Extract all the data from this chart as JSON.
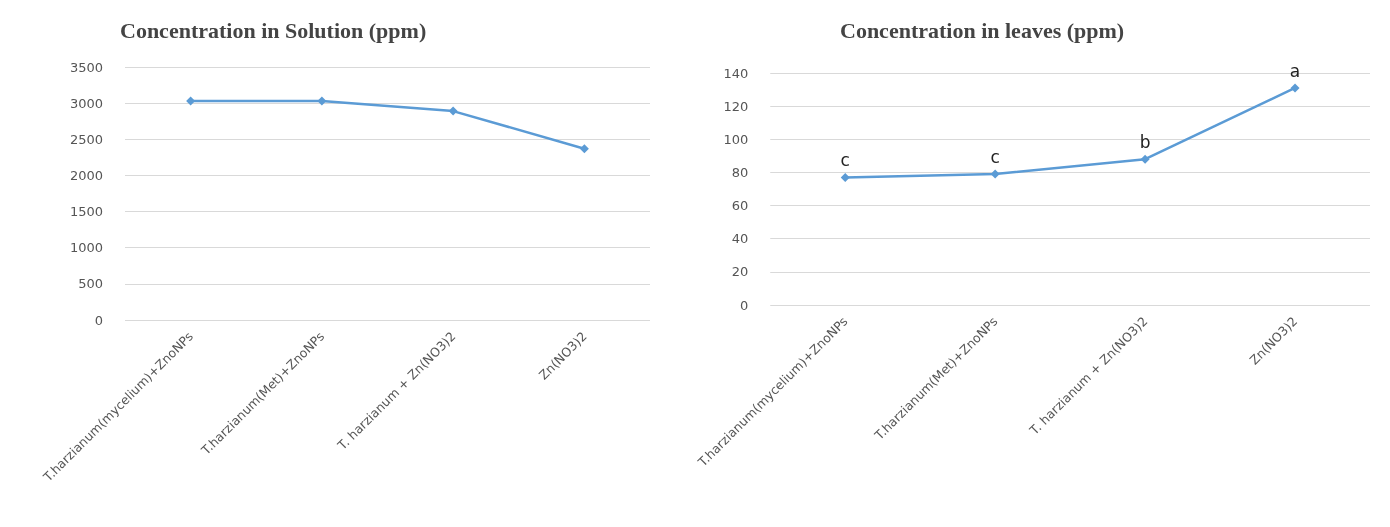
{
  "chart_data": [
    {
      "type": "line",
      "title": "Concentration in Solution (ppm)",
      "categories": [
        "T.harzianum(mycelium)+ZnoNPs",
        "T.harzianum(Met)+ZnoNPs",
        "T. harzianum + Zn(NO3)2",
        "Zn(NO3)2"
      ],
      "series": [
        {
          "color": "#5b9bd5",
          "values": [
            3030,
            3030,
            2890,
            2370
          ]
        }
      ],
      "ylim": [
        0,
        3500
      ],
      "yticks": [
        0,
        500,
        1000,
        1500,
        2000,
        2500,
        3000,
        3500
      ],
      "grid": "y",
      "marker": "diamond",
      "line_style": "solid"
    },
    {
      "type": "line",
      "title": "Concentration in leaves (ppm)",
      "categories": [
        "T.harzianum(mycelium)+ZnoNPs",
        "T.harzianum(Met)+ZnoNPs",
        "T. harzianum + Zn(NO3)2",
        "Zn(NO3)2"
      ],
      "series": [
        {
          "color": "#5b9bd5",
          "values": [
            77,
            79,
            88,
            131
          ],
          "value_labels": [
            "c",
            "c",
            "b",
            "a"
          ]
        }
      ],
      "ylim": [
        0,
        140
      ],
      "yticks": [
        0,
        20,
        40,
        60,
        80,
        100,
        120,
        140
      ],
      "grid": "y",
      "marker": "diamond",
      "line_style": "solid"
    }
  ]
}
